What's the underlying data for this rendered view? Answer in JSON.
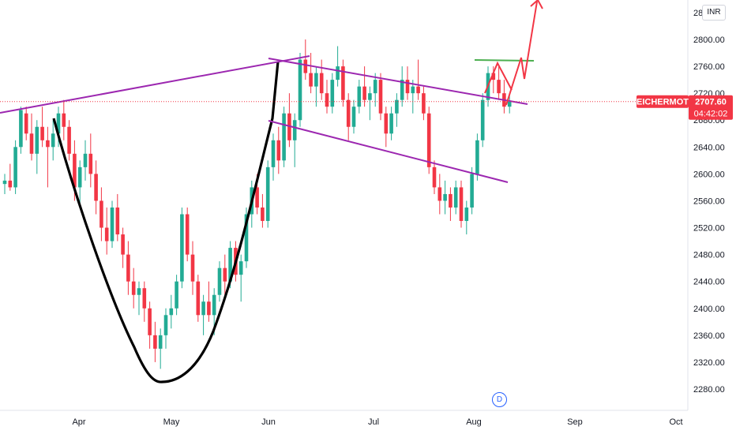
{
  "chart_data": {
    "type": "candlestick",
    "symbol": "EICHERMOT",
    "currency": "INR",
    "last_price": "2707.60",
    "countdown": "04:42:02",
    "y_ticks": [
      "2800.00",
      "2760.00",
      "2720.00",
      "2680.00",
      "2640.00",
      "2600.00",
      "2560.00",
      "2520.00",
      "2480.00",
      "2440.00",
      "2400.00",
      "2360.00",
      "2320.00",
      "2280.00"
    ],
    "y_top_label": "28",
    "x_ticks": [
      "Apr",
      "May",
      "Jun",
      "Jul",
      "Aug",
      "Sep",
      "Oct"
    ],
    "event_marker": "D",
    "ohlc": [
      [
        2585,
        2600,
        2570,
        2590
      ],
      [
        2590,
        2615,
        2575,
        2580
      ],
      [
        2580,
        2650,
        2570,
        2640
      ],
      [
        2640,
        2700,
        2630,
        2695
      ],
      [
        2690,
        2700,
        2650,
        2660
      ],
      [
        2660,
        2690,
        2620,
        2630
      ],
      [
        2630,
        2680,
        2600,
        2670
      ],
      [
        2670,
        2700,
        2640,
        2650
      ],
      [
        2650,
        2670,
        2580,
        2640
      ],
      [
        2640,
        2680,
        2620,
        2660
      ],
      [
        2660,
        2700,
        2640,
        2690
      ],
      [
        2690,
        2710,
        2650,
        2670
      ],
      [
        2670,
        2680,
        2620,
        2630
      ],
      [
        2630,
        2650,
        2560,
        2580
      ],
      [
        2580,
        2620,
        2550,
        2610
      ],
      [
        2610,
        2650,
        2590,
        2630
      ],
      [
        2630,
        2660,
        2580,
        2600
      ],
      [
        2600,
        2620,
        2540,
        2560
      ],
      [
        2560,
        2580,
        2500,
        2520
      ],
      [
        2520,
        2550,
        2480,
        2500
      ],
      [
        2500,
        2560,
        2490,
        2550
      ],
      [
        2550,
        2570,
        2500,
        2510
      ],
      [
        2510,
        2520,
        2460,
        2480
      ],
      [
        2480,
        2500,
        2420,
        2440
      ],
      [
        2440,
        2460,
        2400,
        2420
      ],
      [
        2420,
        2440,
        2390,
        2430
      ],
      [
        2430,
        2440,
        2380,
        2400
      ],
      [
        2400,
        2410,
        2340,
        2360
      ],
      [
        2360,
        2380,
        2320,
        2340
      ],
      [
        2340,
        2370,
        2310,
        2360
      ],
      [
        2360,
        2400,
        2340,
        2390
      ],
      [
        2390,
        2420,
        2370,
        2400
      ],
      [
        2400,
        2450,
        2390,
        2440
      ],
      [
        2440,
        2550,
        2430,
        2540
      ],
      [
        2540,
        2550,
        2470,
        2480
      ],
      [
        2480,
        2500,
        2420,
        2440
      ],
      [
        2440,
        2450,
        2380,
        2390
      ],
      [
        2390,
        2420,
        2360,
        2410
      ],
      [
        2410,
        2440,
        2380,
        2390
      ],
      [
        2390,
        2430,
        2360,
        2420
      ],
      [
        2420,
        2470,
        2410,
        2460
      ],
      [
        2460,
        2480,
        2420,
        2440
      ],
      [
        2440,
        2500,
        2430,
        2490
      ],
      [
        2490,
        2500,
        2440,
        2450
      ],
      [
        2450,
        2480,
        2410,
        2470
      ],
      [
        2470,
        2550,
        2460,
        2540
      ],
      [
        2540,
        2590,
        2520,
        2580
      ],
      [
        2580,
        2600,
        2540,
        2550
      ],
      [
        2550,
        2570,
        2520,
        2530
      ],
      [
        2530,
        2620,
        2520,
        2610
      ],
      [
        2610,
        2660,
        2590,
        2650
      ],
      [
        2650,
        2670,
        2600,
        2620
      ],
      [
        2620,
        2700,
        2610,
        2690
      ],
      [
        2690,
        2720,
        2640,
        2650
      ],
      [
        2650,
        2690,
        2610,
        2680
      ],
      [
        2680,
        2780,
        2670,
        2770
      ],
      [
        2770,
        2800,
        2740,
        2750
      ],
      [
        2750,
        2780,
        2720,
        2730
      ],
      [
        2730,
        2760,
        2700,
        2750
      ],
      [
        2750,
        2770,
        2710,
        2720
      ],
      [
        2720,
        2740,
        2690,
        2700
      ],
      [
        2700,
        2750,
        2690,
        2740
      ],
      [
        2740,
        2790,
        2730,
        2760
      ],
      [
        2760,
        2770,
        2700,
        2710
      ],
      [
        2710,
        2720,
        2650,
        2670
      ],
      [
        2670,
        2710,
        2660,
        2700
      ],
      [
        2700,
        2740,
        2690,
        2730
      ],
      [
        2730,
        2760,
        2700,
        2710
      ],
      [
        2710,
        2730,
        2680,
        2720
      ],
      [
        2720,
        2750,
        2700,
        2740
      ],
      [
        2740,
        2750,
        2680,
        2690
      ],
      [
        2690,
        2700,
        2640,
        2660
      ],
      [
        2660,
        2700,
        2650,
        2690
      ],
      [
        2690,
        2720,
        2670,
        2710
      ],
      [
        2710,
        2760,
        2700,
        2740
      ],
      [
        2740,
        2760,
        2710,
        2720
      ],
      [
        2720,
        2740,
        2690,
        2730
      ],
      [
        2730,
        2770,
        2710,
        2720
      ],
      [
        2720,
        2730,
        2680,
        2690
      ],
      [
        2690,
        2700,
        2600,
        2610
      ],
      [
        2610,
        2620,
        2570,
        2580
      ],
      [
        2580,
        2600,
        2540,
        2560
      ],
      [
        2560,
        2590,
        2540,
        2570
      ],
      [
        2570,
        2580,
        2530,
        2550
      ],
      [
        2550,
        2590,
        2540,
        2580
      ],
      [
        2580,
        2590,
        2520,
        2530
      ],
      [
        2530,
        2560,
        2510,
        2550
      ],
      [
        2550,
        2610,
        2540,
        2600
      ],
      [
        2600,
        2660,
        2590,
        2650
      ],
      [
        2650,
        2720,
        2640,
        2710
      ],
      [
        2710,
        2760,
        2700,
        2750
      ],
      [
        2750,
        2760,
        2720,
        2740
      ],
      [
        2740,
        2760,
        2710,
        2720
      ],
      [
        2720,
        2740,
        2690,
        2700
      ],
      [
        2700,
        2720,
        2690,
        2707.6
      ]
    ]
  }
}
